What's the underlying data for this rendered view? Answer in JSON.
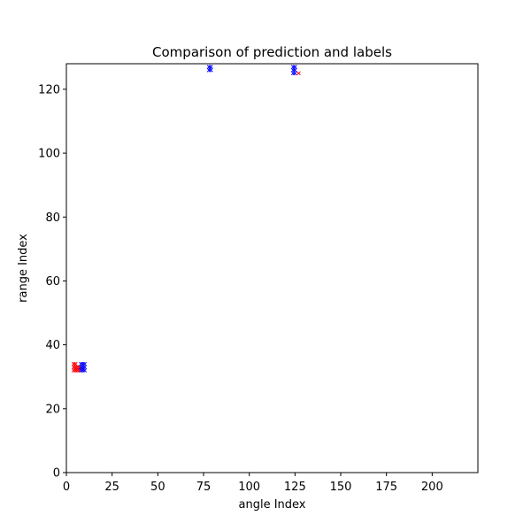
{
  "chart_data": {
    "type": "scatter",
    "title": "Comparison of prediction and labels",
    "xlabel": "angle Index",
    "ylabel": "range Index",
    "xlim": [
      0,
      225
    ],
    "ylim": [
      0,
      128
    ],
    "xticks": [
      0,
      25,
      50,
      75,
      100,
      125,
      150,
      175,
      200
    ],
    "yticks": [
      0,
      20,
      40,
      60,
      80,
      100,
      120
    ],
    "grid": false,
    "legend": "none",
    "series": [
      {
        "color": "#ff0000",
        "marker": "x",
        "points": [
          [
            4,
            32
          ],
          [
            4,
            33
          ],
          [
            4,
            34
          ],
          [
            5,
            32
          ],
          [
            5,
            33
          ],
          [
            5,
            34
          ],
          [
            6,
            32
          ],
          [
            6,
            33
          ],
          [
            7,
            32
          ],
          [
            7,
            33
          ],
          [
            127,
            125
          ]
        ]
      },
      {
        "color": "#0000ff",
        "marker": "x",
        "points": [
          [
            8,
            32
          ],
          [
            8,
            33
          ],
          [
            8,
            34
          ],
          [
            9,
            32
          ],
          [
            9,
            33
          ],
          [
            9,
            34
          ],
          [
            10,
            32
          ],
          [
            10,
            33
          ],
          [
            10,
            34
          ],
          [
            78,
            126
          ],
          [
            78,
            127
          ],
          [
            79,
            126
          ],
          [
            79,
            127
          ],
          [
            124,
            125
          ],
          [
            124,
            126
          ],
          [
            124,
            127
          ],
          [
            125,
            125
          ],
          [
            125,
            126
          ],
          [
            125,
            127
          ]
        ]
      }
    ]
  }
}
